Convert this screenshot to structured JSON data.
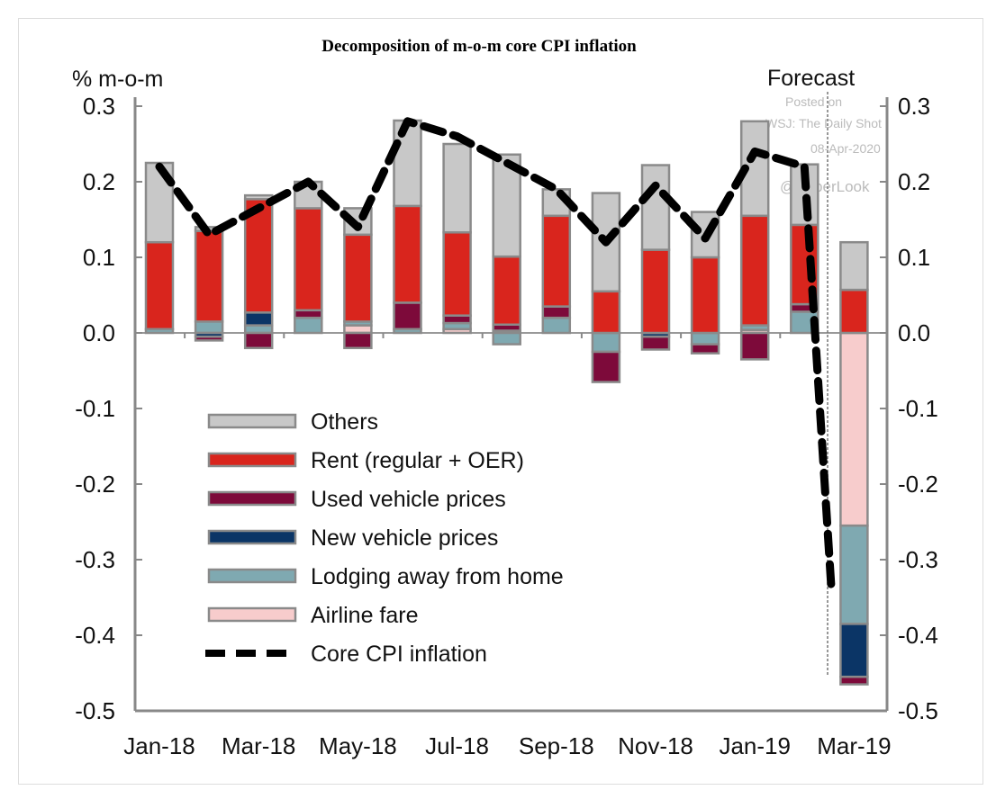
{
  "chart_data": {
    "type": "bar",
    "title": "Decomposition of m-o-m core CPI inflation",
    "ylabel": "% m-o-m",
    "annotation": "Forecast",
    "watermark": [
      "Posted on",
      "WSJ: The Daily Shot",
      "08-Apr-2020",
      "@SoberLook"
    ],
    "ylim": [
      -0.5,
      0.3
    ],
    "yticks": [
      "0.3",
      "0.2",
      "0.1",
      "0.0",
      "-0.1",
      "-0.2",
      "-0.3",
      "-0.4",
      "-0.5"
    ],
    "ytick_values": [
      0.3,
      0.2,
      0.1,
      0.0,
      -0.1,
      -0.2,
      -0.3,
      -0.4,
      -0.5
    ],
    "categories": [
      "Jan-18",
      "Feb-18",
      "Mar-18",
      "Apr-18",
      "May-18",
      "Jun-18",
      "Jul-18",
      "Aug-18",
      "Sep-18",
      "Oct-18",
      "Nov-18",
      "Dec-18",
      "Jan-19",
      "Feb-19",
      "Mar-19"
    ],
    "xtick_labels": [
      "Jan-18",
      "Mar-18",
      "May-18",
      "Jul-18",
      "Sep-18",
      "Nov-18",
      "Jan-19",
      "Mar-19"
    ],
    "legend_position": "left-center",
    "series": [
      {
        "name": "Airline fare",
        "color": "#f7cccc",
        "values": [
          0,
          0,
          0,
          0,
          0.01,
          0,
          0.005,
          0.003,
          0,
          0,
          0,
          0,
          0.004,
          0,
          -0.255
        ]
      },
      {
        "name": "Lodging away from home",
        "color": "#7fa9b1",
        "values": [
          0.005,
          0.015,
          0.01,
          0.02,
          0.005,
          0.005,
          0.008,
          -0.015,
          0.02,
          -0.025,
          0,
          -0.015,
          0.006,
          0.028,
          -0.13
        ]
      },
      {
        "name": "New vehicle prices",
        "color": "#0b3566",
        "values": [
          0,
          -0.005,
          0.017,
          0,
          0,
          0,
          0,
          0,
          0,
          0,
          -0.005,
          0,
          0,
          0,
          -0.07
        ]
      },
      {
        "name": "Used vehicle prices",
        "color": "#7d0a3a",
        "values": [
          0,
          -0.005,
          -0.02,
          0.01,
          -0.02,
          0.035,
          0.01,
          0.008,
          0.015,
          -0.04,
          -0.017,
          -0.012,
          -0.035,
          0.01,
          -0.01
        ]
      },
      {
        "name": "Rent (regular + OER)",
        "color": "#d9251d",
        "values": [
          0.115,
          0.12,
          0.15,
          0.135,
          0.115,
          0.128,
          0.11,
          0.09,
          0.12,
          0.055,
          0.11,
          0.1,
          0.145,
          0.105,
          0.057
        ]
      },
      {
        "name": "Others",
        "color": "#c8c8c8",
        "values": [
          0.105,
          0.005,
          0.005,
          0.035,
          0.035,
          0.113,
          0.117,
          0.135,
          0.035,
          0.13,
          0.112,
          0.06,
          0.125,
          0.08,
          0.063
        ]
      }
    ],
    "line": {
      "name": "Core CPI inflation",
      "values": [
        0.22,
        0.13,
        0.165,
        0.2,
        0.14,
        0.28,
        0.26,
        0.225,
        0.19,
        0.12,
        0.195,
        0.125,
        0.24,
        0.22,
        -0.335
      ]
    },
    "legend_order": [
      "Others",
      "Rent (regular + OER)",
      "Used vehicle prices",
      "New vehicle prices",
      "Lodging away from home",
      "Airline fare",
      "Core CPI inflation"
    ]
  }
}
